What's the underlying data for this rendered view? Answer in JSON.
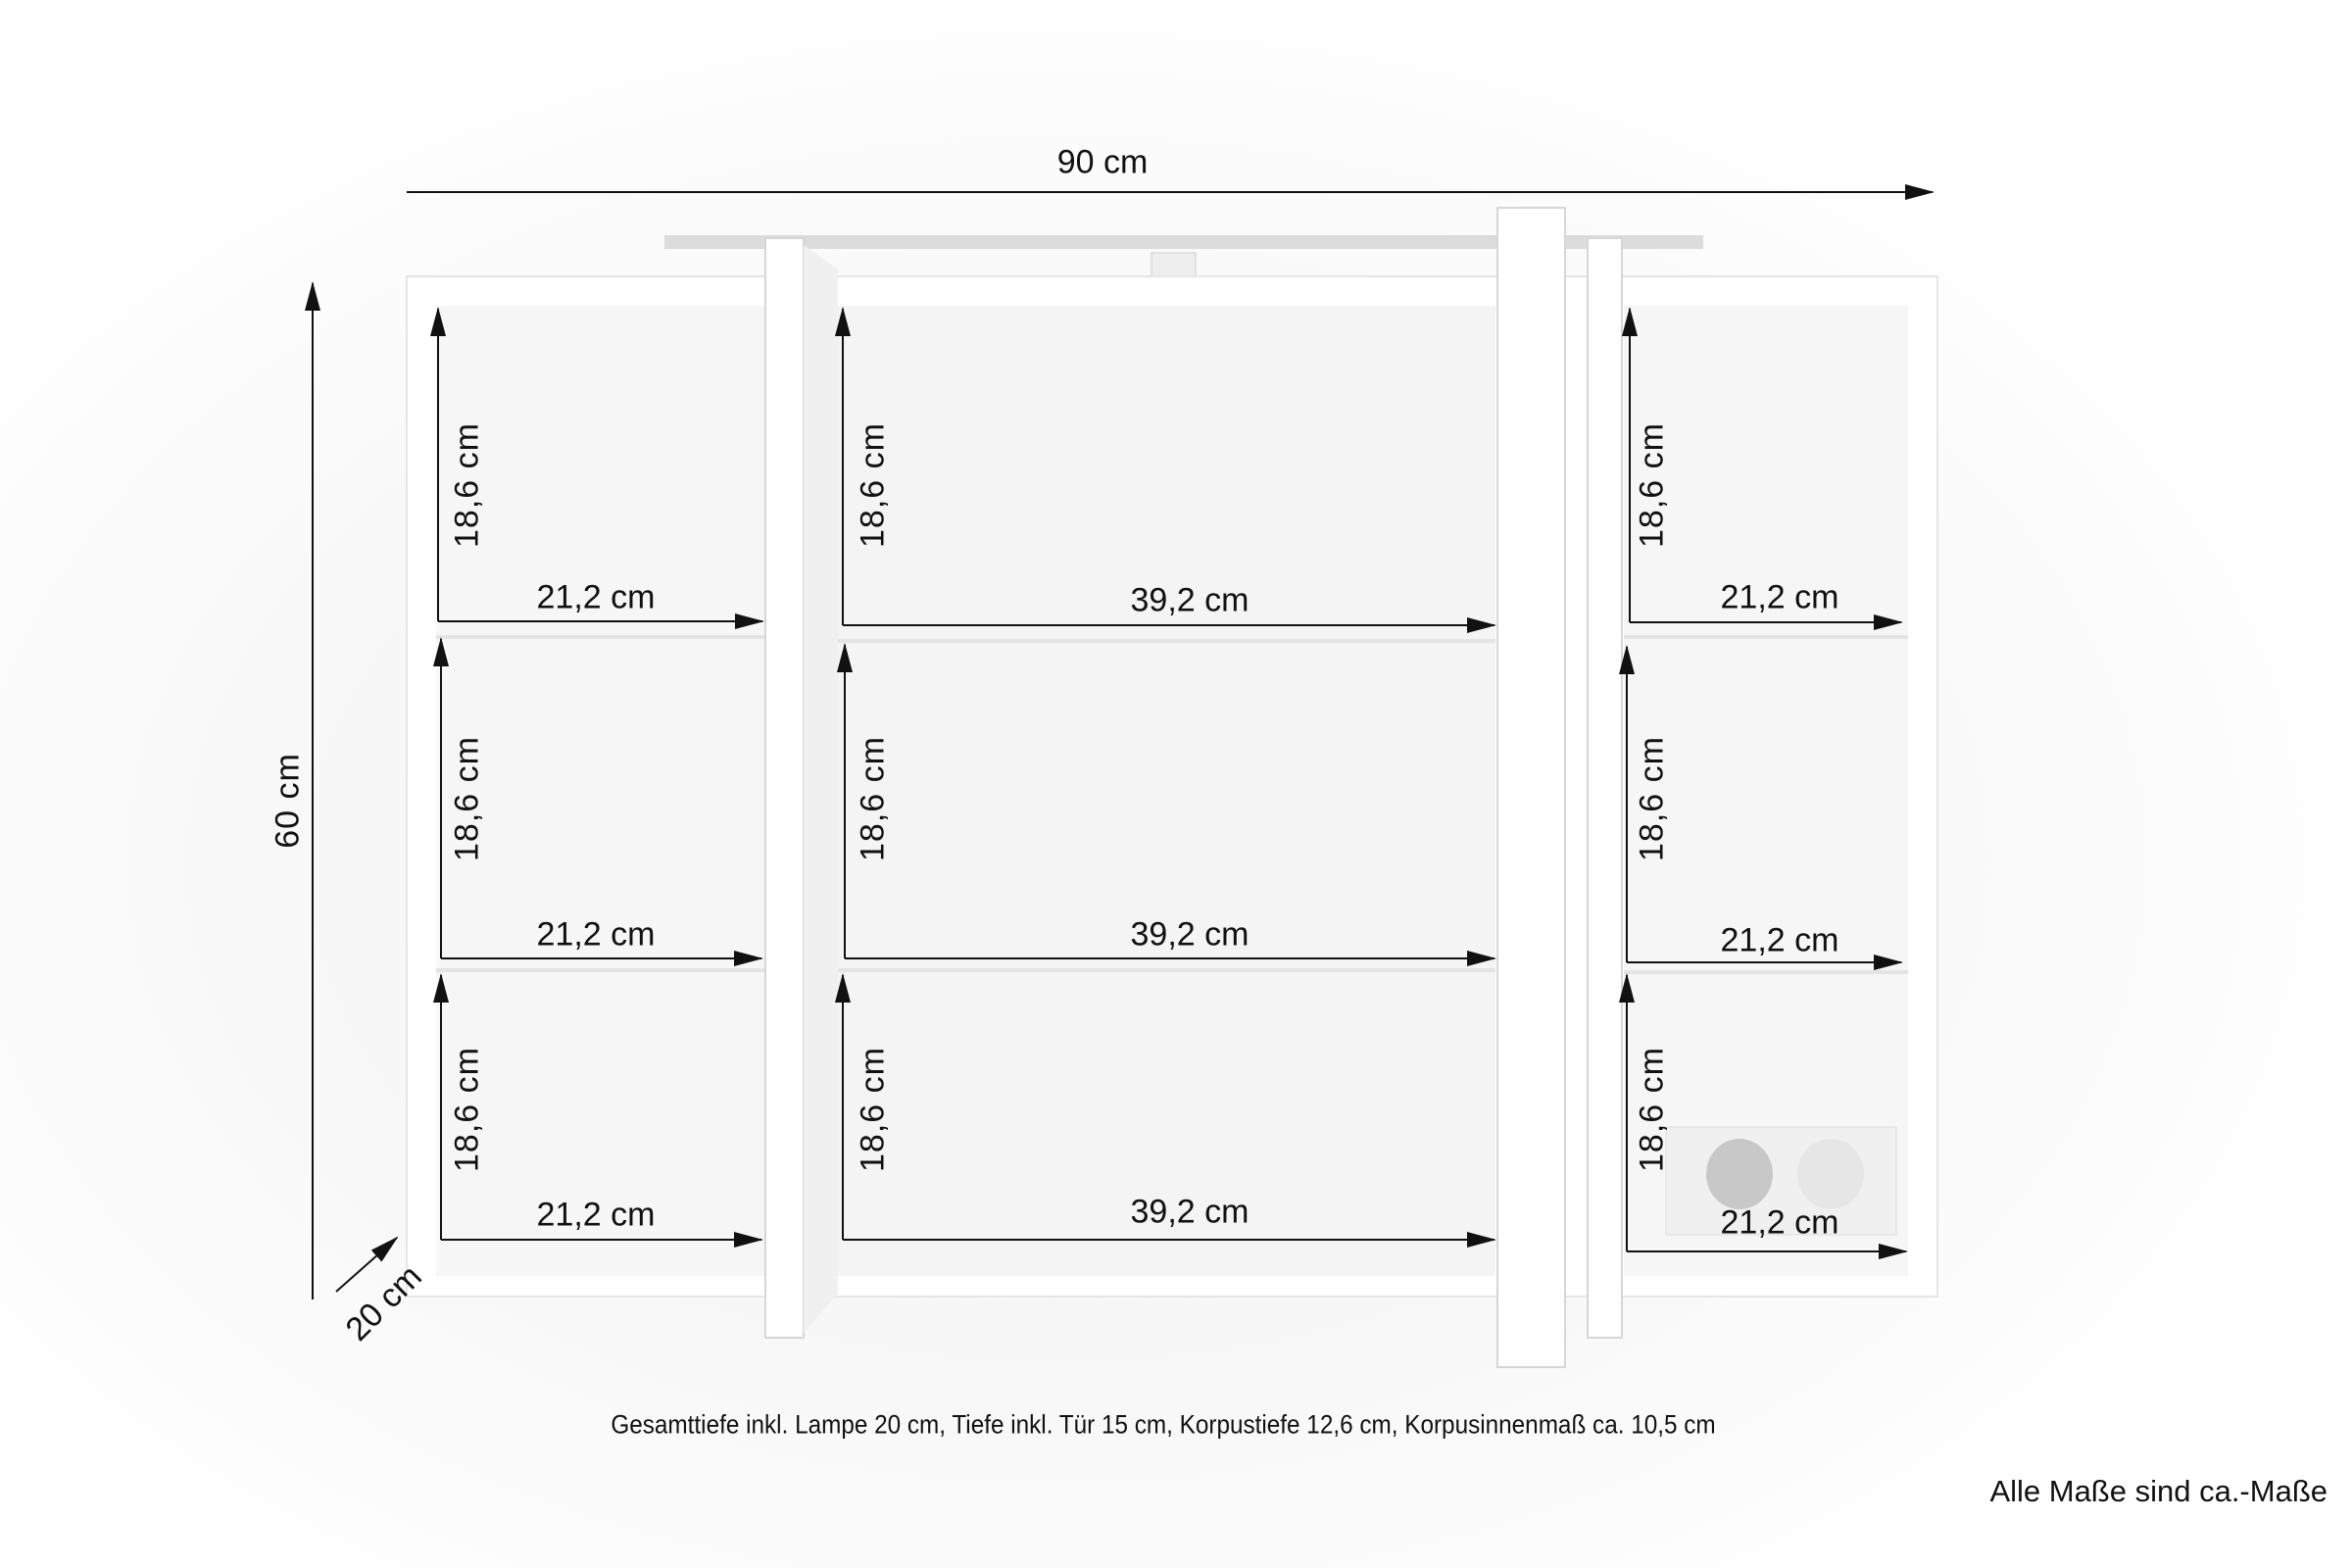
{
  "dimensions": {
    "width": "90 cm",
    "height": "60 cm",
    "depth": "20 cm"
  },
  "compartments": [
    {
      "height": "18,6 cm",
      "width": "21,2 cm"
    },
    {
      "height": "18,6 cm",
      "width": "39,2 cm"
    },
    {
      "height": "18,6 cm",
      "width": "21,2 cm"
    },
    {
      "height": "18,6 cm",
      "width": "21,2 cm"
    },
    {
      "height": "18,6 cm",
      "width": "39,2 cm"
    },
    {
      "height": "18,6 cm",
      "width": "21,2 cm"
    },
    {
      "height": "18,6 cm",
      "width": "21,2 cm"
    },
    {
      "height": "18,6 cm",
      "width": "39,2 cm"
    },
    {
      "height": "18,6 cm",
      "width": "21,2 cm"
    }
  ],
  "footer": {
    "depth_note": "Gesamttiefe inkl. Lampe 20 cm, Tiefe inkl. Tür 15 cm, Korpustiefe 12,6 cm, Korpusinnenmaß ca. 10,5 cm",
    "disclaimer": "Alle Maße sind ca.-Maße"
  },
  "colors": {
    "line": "#111111",
    "cabinet": "#ffffff",
    "shadow": "#e2e2e2"
  }
}
